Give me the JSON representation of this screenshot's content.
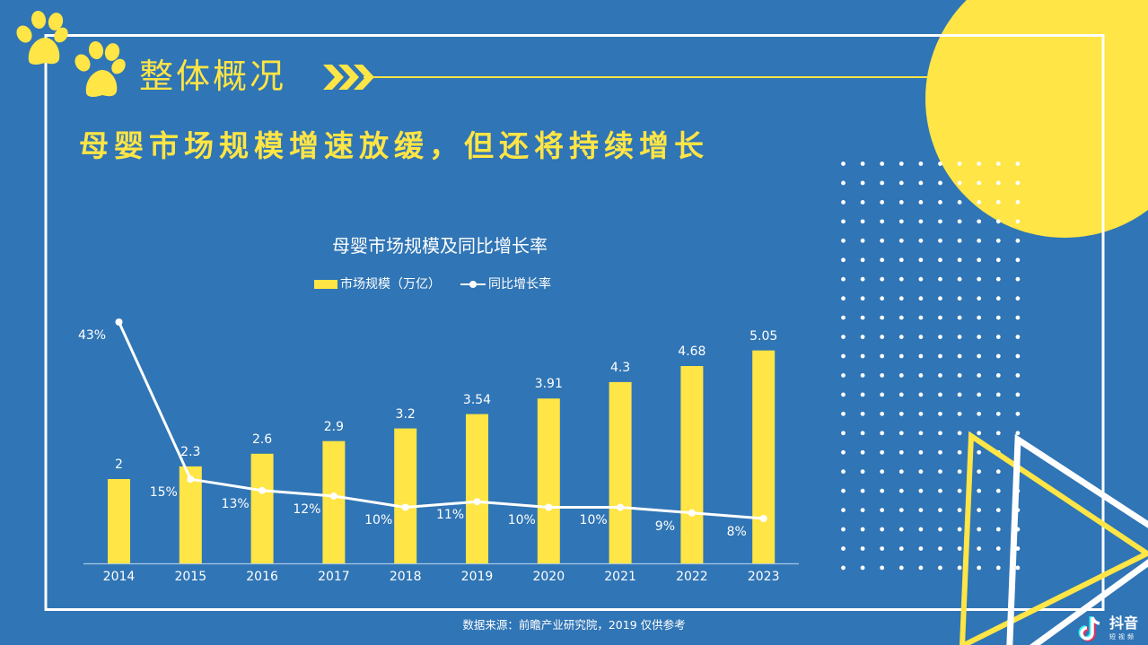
{
  "section": {
    "title": "整体概况",
    "arrow_icon": "triple-chevron-right"
  },
  "headline": "母婴市场规模增速放缓，但还将持续增长",
  "chart": {
    "title": "母婴市场规模及同比增长率",
    "legend": {
      "bar": "市场规模（万亿）",
      "line": "同比增长率"
    }
  },
  "chart_data": {
    "type": "bar+line",
    "title": "母婴市场规模及同比增长率",
    "categories": [
      "2014",
      "2015",
      "2016",
      "2017",
      "2018",
      "2019",
      "2020",
      "2021",
      "2022",
      "2023"
    ],
    "series": [
      {
        "name": "市场规模（万亿）",
        "type": "bar",
        "color": "#ffe545",
        "values": [
          2,
          2.3,
          2.6,
          2.9,
          3.2,
          3.54,
          3.91,
          4.3,
          4.68,
          5.05
        ],
        "labels": [
          "2",
          "2.3",
          "2.6",
          "2.9",
          "3.2",
          "3.54",
          "3.91",
          "4.3",
          "4.68",
          "5.05"
        ]
      },
      {
        "name": "同比增长率",
        "type": "line",
        "color": "#ffffff",
        "values": [
          43,
          15,
          13,
          12,
          10,
          11,
          10,
          10,
          9,
          8
        ],
        "labels": [
          "43%",
          "15%",
          "13%",
          "12%",
          "10%",
          "11%",
          "10%",
          "10%",
          "9%",
          "8%"
        ]
      }
    ],
    "xlabel": "",
    "ylabel": "",
    "grid": false,
    "legend_position": "top"
  },
  "source_note": "数据来源：前瞻产业研究院，2019  仅供参考",
  "logo": {
    "name": "抖音",
    "sub": "短视频"
  },
  "colors": {
    "background": "#3075b5",
    "accent": "#ffe545",
    "line": "#ffffff"
  }
}
